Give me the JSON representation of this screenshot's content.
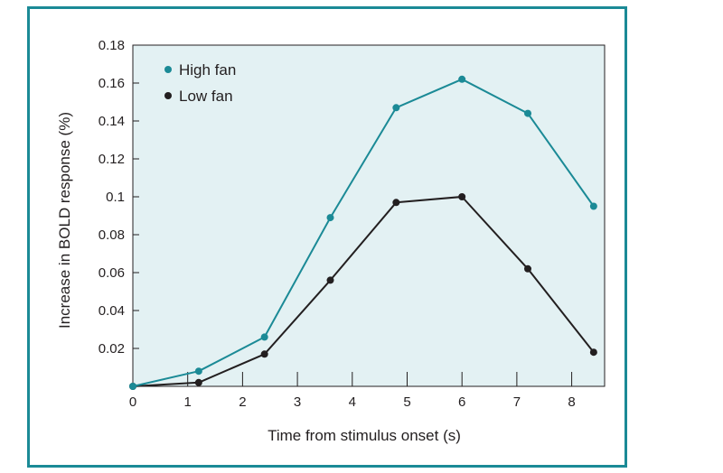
{
  "chart_data": {
    "type": "line",
    "xlabel": "Time from stimulus onset (s)",
    "ylabel": "Increase in BOLD response (%)",
    "xlim": [
      0,
      8.6
    ],
    "ylim": [
      0,
      0.18
    ],
    "x_ticks": [
      0,
      1,
      2,
      3,
      4,
      5,
      6,
      7,
      8
    ],
    "x_tick_labels": [
      "0",
      "1",
      "2",
      "3",
      "4",
      "5",
      "6",
      "7",
      "8"
    ],
    "y_ticks": [
      0.02,
      0.04,
      0.06,
      0.08,
      0.1,
      0.12,
      0.14,
      0.16,
      0.18
    ],
    "y_tick_labels": [
      "0.02",
      "0.04",
      "0.06",
      "0.08",
      "0.1",
      "0.12",
      "0.14",
      "0.16",
      "0.18"
    ],
    "legend_position": "top-left",
    "plot_background": "#e3f1f3",
    "series": [
      {
        "name": "High fan",
        "color": "#1b8a96",
        "x": [
          0,
          1.2,
          2.4,
          3.6,
          4.8,
          6,
          7.2,
          8.4
        ],
        "y": [
          0,
          0.008,
          0.026,
          0.089,
          0.147,
          0.162,
          0.144,
          0.095
        ]
      },
      {
        "name": "Low fan",
        "color": "#231f20",
        "x": [
          0,
          1.2,
          2.4,
          3.6,
          4.8,
          6,
          7.2,
          8.4
        ],
        "y": [
          0,
          0.002,
          0.017,
          0.056,
          0.097,
          0.1,
          0.062,
          0.018
        ]
      }
    ]
  }
}
